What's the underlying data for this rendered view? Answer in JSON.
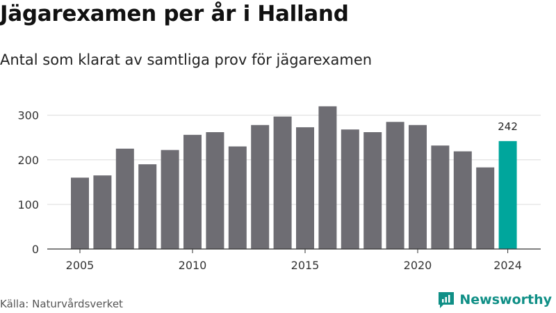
{
  "header": {
    "title": "Jägarexamen per år i Halland",
    "subtitle": "Antal som klarat av samtliga prov för jägarexamen"
  },
  "footer": {
    "source": "Källa: Naturvårdsverket",
    "brand": "Newsworthy"
  },
  "colors": {
    "bar": "#6e6d73",
    "highlight": "#00a69c",
    "brand": "#0f8f86"
  },
  "chart_data": {
    "type": "bar",
    "title": "Jägarexamen per år i Halland",
    "subtitle": "Antal som klarat av samtliga prov för jägarexamen",
    "xlabel": "",
    "ylabel": "",
    "x": [
      2005,
      2006,
      2007,
      2008,
      2009,
      2010,
      2011,
      2012,
      2013,
      2014,
      2015,
      2016,
      2017,
      2018,
      2019,
      2020,
      2021,
      2022,
      2023,
      2024
    ],
    "values": [
      160,
      165,
      225,
      190,
      222,
      256,
      262,
      230,
      278,
      297,
      273,
      320,
      268,
      262,
      285,
      278,
      232,
      219,
      183,
      242
    ],
    "x_ticks": [
      "2005",
      "2010",
      "2015",
      "2020",
      "2024"
    ],
    "y_ticks": [
      0,
      100,
      200,
      300
    ],
    "ylim": [
      0,
      340
    ],
    "grid": true,
    "highlight": {
      "x": 2024,
      "label": "242"
    }
  }
}
